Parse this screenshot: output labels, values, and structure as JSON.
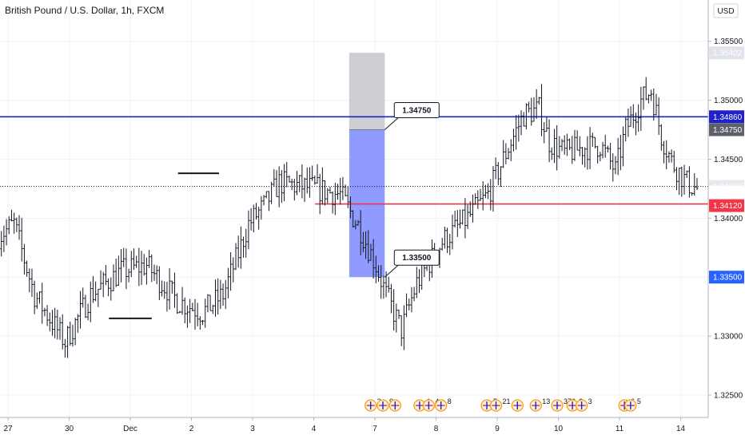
{
  "title": "British Pound / U.S. Dollar, 1h, FXCM",
  "currency": "USD",
  "colors": {
    "bar": "#131722",
    "resistance": "#1e22c8",
    "support": "#f23645",
    "stop_zone": "#c8c9cc",
    "target_zone": "#8a96ff",
    "stop_tag": "#5d606b",
    "target_tag": "#2962ff",
    "current_tag": "#e8e8ee",
    "support_tag": "#f23645",
    "resistance_tag": "#1e22c8",
    "last_price_tag": "#131722"
  },
  "chart_data": {
    "type": "ohlc",
    "symbol": "GBPUSD",
    "timeframe": "1h",
    "ylim": [
      1.3231,
      1.3585
    ],
    "y_ticks": [
      1.325,
      1.33,
      1.335,
      1.34,
      1.345,
      1.35,
      1.355
    ],
    "y_tick_labels": [
      "1.32500",
      "1.33000",
      "1.33500",
      "1.34000",
      "1.34500",
      "1.35000",
      "1.35500"
    ],
    "x_ticks": [
      {
        "label": "27",
        "day": 0
      },
      {
        "label": "30",
        "day": 1
      },
      {
        "label": "Dec",
        "day": 2
      },
      {
        "label": "2",
        "day": 3
      },
      {
        "label": "3",
        "day": 4
      },
      {
        "label": "4",
        "day": 5
      },
      {
        "label": "7",
        "day": 6
      },
      {
        "label": "8",
        "day": 7
      },
      {
        "label": "9",
        "day": 8
      },
      {
        "label": "10",
        "day": 9
      },
      {
        "label": "11",
        "day": 10
      },
      {
        "label": "14",
        "day": 11
      }
    ],
    "xlim_days": [
      0,
      11.45
    ],
    "bars_per_day": 24,
    "start_day": -0.15,
    "price_path": [
      [
        0,
        1.3385
      ],
      [
        6,
        1.3395
      ],
      [
        14,
        1.3335
      ],
      [
        26,
        1.3295
      ],
      [
        36,
        1.3335
      ],
      [
        48,
        1.3355
      ],
      [
        58,
        1.336
      ],
      [
        70,
        1.333
      ],
      [
        80,
        1.332
      ],
      [
        88,
        1.3335
      ],
      [
        94,
        1.337
      ],
      [
        98,
        1.3395
      ],
      [
        104,
        1.341
      ],
      [
        110,
        1.343
      ],
      [
        124,
        1.3425
      ],
      [
        134,
        1.342
      ],
      [
        142,
        1.339
      ],
      [
        148,
        1.336
      ],
      [
        152,
        1.3335
      ],
      [
        158,
        1.3305
      ],
      [
        164,
        1.3345
      ],
      [
        174,
        1.338
      ],
      [
        184,
        1.34
      ],
      [
        192,
        1.342
      ],
      [
        200,
        1.346
      ],
      [
        206,
        1.3488
      ],
      [
        212,
        1.3492
      ],
      [
        216,
        1.3465
      ],
      [
        222,
        1.3455
      ],
      [
        230,
        1.346
      ],
      [
        236,
        1.3462
      ],
      [
        242,
        1.344
      ],
      [
        246,
        1.3475
      ],
      [
        252,
        1.35
      ],
      [
        256,
        1.3508
      ],
      [
        260,
        1.347
      ],
      [
        264,
        1.3448
      ],
      [
        270,
        1.343
      ],
      [
        274,
        1.3425
      ]
    ],
    "resistance_level": 1.3486,
    "support_level": 1.3412,
    "support_start_day": 5.02,
    "current_price": 1.34269,
    "price_tags": {
      "high": "1.35402",
      "resistance": "1.34860",
      "stop": "1.34750",
      "current": "1.34269",
      "countdown": "27:56",
      "support": "1.34120",
      "target": "1.33500"
    },
    "position": {
      "entry": 1.3475,
      "stop": 1.35402,
      "target": 1.335,
      "start_day": 5.58,
      "end_day": 6.16
    },
    "callouts": [
      {
        "text": "1.34750",
        "price": 1.3475
      },
      {
        "text": "1.33500",
        "price": 1.335
      }
    ],
    "ranges": [
      {
        "price": 1.3315,
        "from_day": 1.65,
        "to_day": 2.35
      },
      {
        "price": 1.3438,
        "from_day": 2.78,
        "to_day": 3.45
      }
    ],
    "events": [
      {
        "day": 5.93,
        "label": "2"
      },
      {
        "day": 6.13,
        "label": "9"
      },
      {
        "day": 6.33,
        "label": ""
      },
      {
        "day": 6.73,
        "label": "4"
      },
      {
        "day": 6.88,
        "label": "4"
      },
      {
        "day": 7.08,
        "label": "8"
      },
      {
        "day": 7.83,
        "label": "5"
      },
      {
        "day": 7.98,
        "label": "21"
      },
      {
        "day": 8.33,
        "label": ""
      },
      {
        "day": 8.63,
        "label": "13"
      },
      {
        "day": 8.98,
        "label": "376"
      },
      {
        "day": 9.23,
        "label": "2"
      },
      {
        "day": 9.38,
        "label": "3"
      },
      {
        "day": 10.08,
        "label": "6"
      },
      {
        "day": 10.18,
        "label": "5"
      }
    ]
  }
}
